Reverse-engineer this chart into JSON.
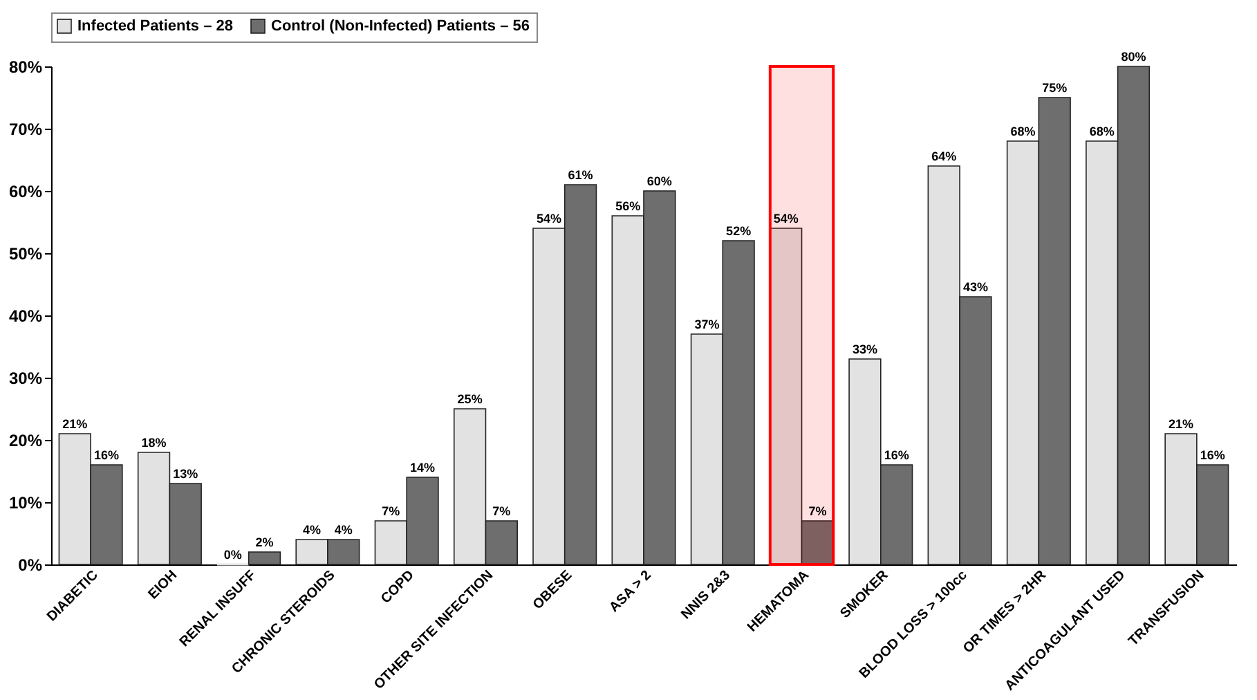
{
  "chart_data": {
    "type": "bar",
    "categories": [
      "DIABETIC",
      "EIOH",
      "RENAL INSUFF",
      "CHRONIC STEROIDS",
      "COPD",
      "OTHER SITE INFECTION",
      "OBESE",
      "ASA > 2",
      "NNIS 2&3",
      "HEMATOMA",
      "SMOKER",
      "BLOOD LOSS > 100cc",
      "OR TIMES > 2HR",
      "ANTICOAGULANT USED",
      "TRANSFUSION"
    ],
    "series": [
      {
        "name": "Infected Patients – 28",
        "color": "#e2e2e2",
        "values": [
          21,
          18,
          0,
          4,
          7,
          25,
          54,
          56,
          37,
          54,
          33,
          64,
          68,
          68,
          21
        ],
        "value_labels": [
          "21%",
          "18%",
          "0%",
          "4%",
          "7%",
          "25%",
          "54%",
          "56%",
          "37%",
          "54%",
          "33%",
          "64%",
          "68%",
          "68%",
          "21%"
        ]
      },
      {
        "name": "Control (Non-Infected) Patients – 56",
        "color": "#6e6e6e",
        "values": [
          16,
          13,
          2,
          4,
          14,
          7,
          61,
          60,
          52,
          7,
          16,
          43,
          75,
          80,
          16
        ],
        "value_labels": [
          "16%",
          "13%",
          "2%",
          "4%",
          "14%",
          "7%",
          "61%",
          "60%",
          "52%",
          "7%",
          "16%",
          "43%",
          "75%",
          "80%",
          "16%"
        ]
      }
    ],
    "ylim": [
      0,
      80
    ],
    "yticks": [
      {
        "value": 0,
        "label": "0%"
      },
      {
        "value": 10,
        "label": "10%"
      },
      {
        "value": 20,
        "label": "20%"
      },
      {
        "value": 30,
        "label": "30%"
      },
      {
        "value": 40,
        "label": "40%"
      },
      {
        "value": 50,
        "label": "50%"
      },
      {
        "value": 60,
        "label": "60%"
      },
      {
        "value": 70,
        "label": "70%"
      },
      {
        "value": 80,
        "label": "80%"
      }
    ],
    "bands": [
      {
        "axis": "x",
        "from": "HEMATOMA",
        "to": "HEMATOMA",
        "color": "#ff0000"
      }
    ],
    "legend": "top",
    "grid": false
  }
}
